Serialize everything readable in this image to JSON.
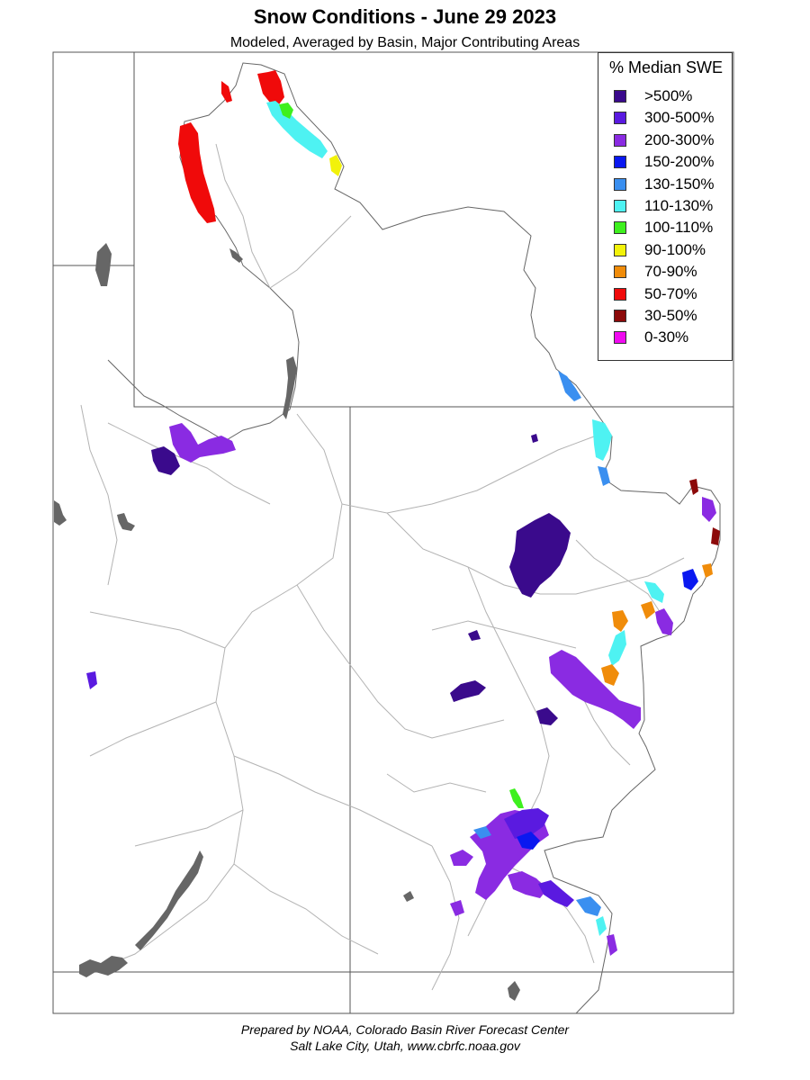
{
  "title": "Snow Conditions - June 29 2023",
  "subtitle": "Modeled, Averaged by Basin, Major Contributing Areas",
  "legend": {
    "title": "% Median SWE",
    "items": [
      {
        "label": ">500%",
        "color": "#3a0a8c"
      },
      {
        "label": "300-500%",
        "color": "#5a1ae0"
      },
      {
        "label": "200-300%",
        "color": "#8a2be2"
      },
      {
        "label": "150-200%",
        "color": "#0a18f0"
      },
      {
        "label": "130-150%",
        "color": "#3a8ff0"
      },
      {
        "label": "110-130%",
        "color": "#4ef2f2"
      },
      {
        "label": "100-110%",
        "color": "#3ef01e"
      },
      {
        "label": "90-100%",
        "color": "#f2f20a"
      },
      {
        "label": "70-90%",
        "color": "#f08c0a"
      },
      {
        "label": "50-70%",
        "color": "#f00a0a"
      },
      {
        "label": "30-50%",
        "color": "#8c0a0a"
      },
      {
        "label": "0-30%",
        "color": "#f00af0"
      }
    ]
  },
  "footer": {
    "line1": "Prepared by NOAA, Colorado Basin River Forecast Center",
    "line2": "Salt Lake City, Utah, www.cbrfc.noaa.gov"
  }
}
